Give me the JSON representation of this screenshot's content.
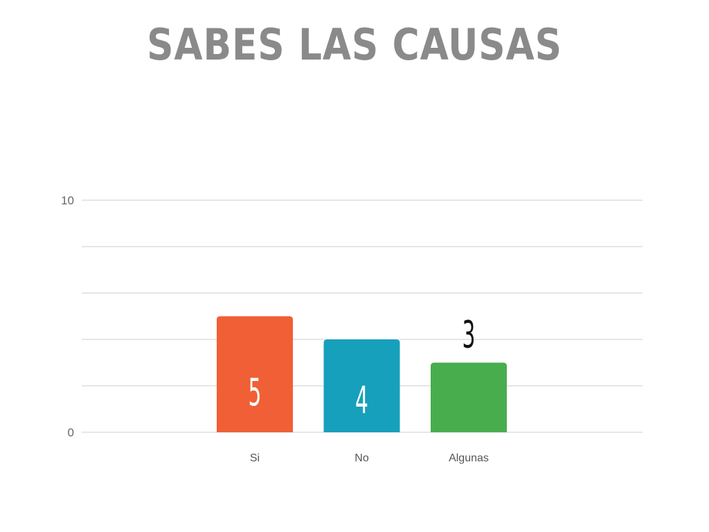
{
  "title": "SABES LAS CAUSAS",
  "chart_data": {
    "type": "bar",
    "title": "SABES LAS CAUSAS",
    "categories": [
      "Si",
      "No",
      "Algunas"
    ],
    "values": [
      5,
      4,
      3
    ],
    "data_labels": [
      "5",
      "4",
      "3"
    ],
    "colors": [
      "#f05f35",
      "#16a0bc",
      "#48ad4d"
    ],
    "label_colors": [
      "#ffffff",
      "#ffffff",
      "#111111"
    ],
    "ylim": [
      0,
      10
    ],
    "y_tick_labels": [
      "0",
      "10"
    ],
    "gridlines": 5,
    "grid": true,
    "xlabel": "",
    "ylabel": ""
  }
}
